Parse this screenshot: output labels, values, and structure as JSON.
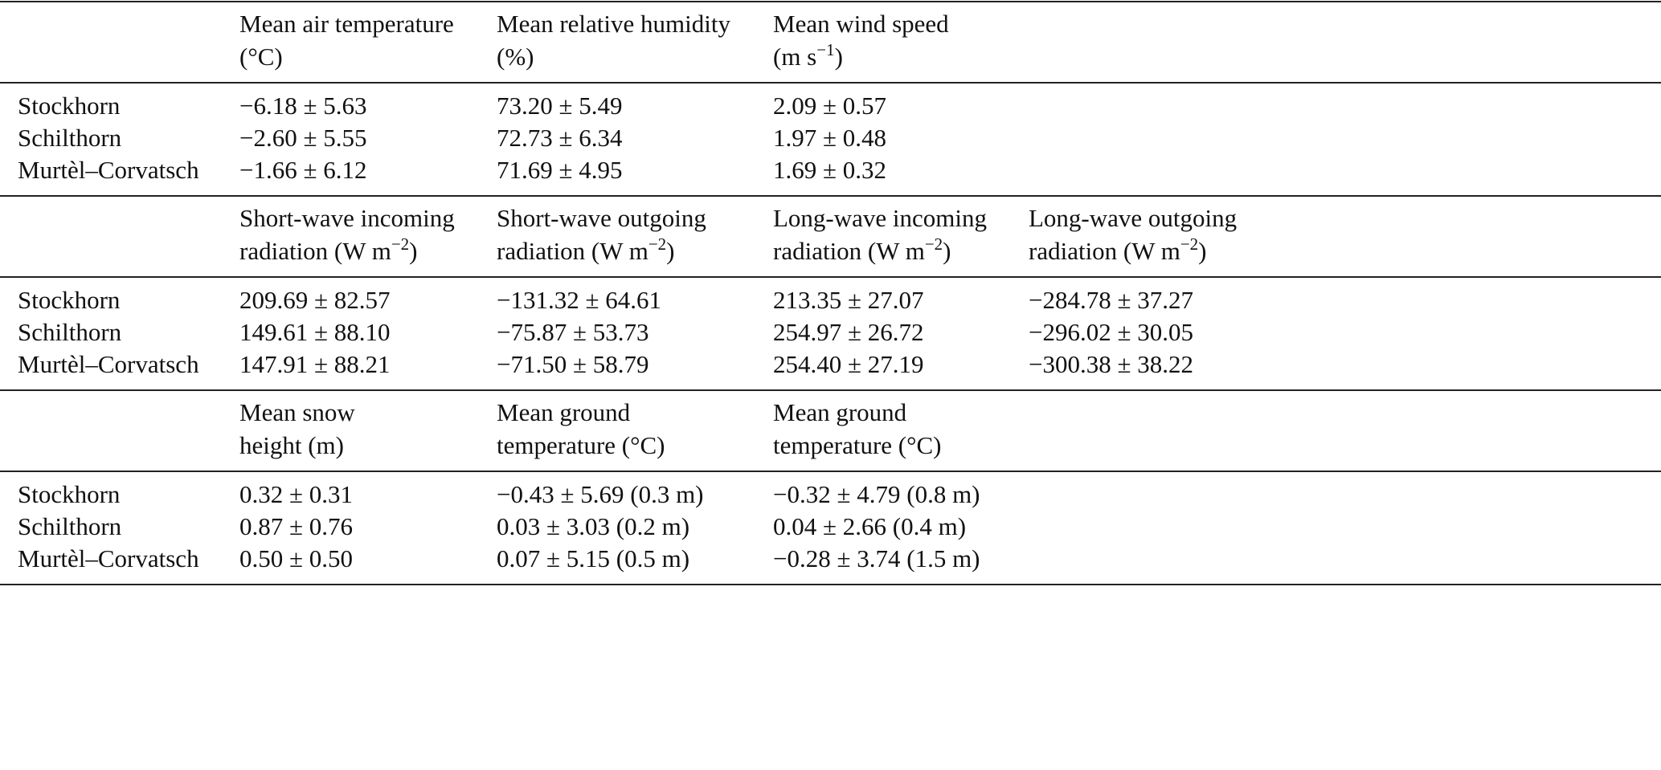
{
  "sections": [
    {
      "headers": [
        {
          "line1": "Mean air temperature",
          "line2": "(°C)",
          "sup": "",
          "post": ""
        },
        {
          "line1": "Mean relative humidity",
          "line2": "(%)",
          "sup": "",
          "post": ""
        },
        {
          "line1": "Mean wind speed",
          "line2": "(m s",
          "sup": "−1",
          "post": ")"
        }
      ],
      "rows": [
        {
          "site": "Stockhorn",
          "values": [
            "−6.18 ± 5.63",
            "73.20 ± 5.49",
            "2.09 ± 0.57"
          ]
        },
        {
          "site": "Schilthorn",
          "values": [
            "−2.60 ± 5.55",
            "72.73 ± 6.34",
            "1.97 ± 0.48"
          ]
        },
        {
          "site": "Murtèl–Corvatsch",
          "values": [
            "−1.66 ± 6.12",
            "71.69 ± 4.95",
            "1.69 ± 0.32"
          ]
        }
      ]
    },
    {
      "headers": [
        {
          "line1": "Short-wave incoming",
          "line2": "radiation (W m",
          "sup": "−2",
          "post": ")"
        },
        {
          "line1": "Short-wave outgoing",
          "line2": "radiation (W m",
          "sup": "−2",
          "post": ")"
        },
        {
          "line1": "Long-wave incoming",
          "line2": "radiation (W m",
          "sup": "−2",
          "post": ")"
        },
        {
          "line1": "Long-wave outgoing",
          "line2": "radiation (W m",
          "sup": "−2",
          "post": ")"
        }
      ],
      "rows": [
        {
          "site": "Stockhorn",
          "values": [
            "209.69 ± 82.57",
            "−131.32 ± 64.61",
            "213.35 ± 27.07",
            "−284.78 ± 37.27"
          ]
        },
        {
          "site": "Schilthorn",
          "values": [
            "149.61 ± 88.10",
            "−75.87 ± 53.73",
            "254.97 ± 26.72",
            "−296.02 ± 30.05"
          ]
        },
        {
          "site": "Murtèl–Corvatsch",
          "values": [
            "147.91 ± 88.21",
            "−71.50 ± 58.79",
            "254.40 ± 27.19",
            "−300.38 ± 38.22"
          ]
        }
      ]
    },
    {
      "headers": [
        {
          "line1": "Mean snow",
          "line2": "height (m)",
          "sup": "",
          "post": ""
        },
        {
          "line1": "Mean ground",
          "line2": "temperature (°C)",
          "sup": "",
          "post": ""
        },
        {
          "line1": "Mean ground",
          "line2": "temperature (°C)",
          "sup": "",
          "post": ""
        }
      ],
      "rows": [
        {
          "site": "Stockhorn",
          "values": [
            "0.32 ± 0.31",
            "−0.43 ± 5.69 (0.3 m)",
            "−0.32 ± 4.79 (0.8 m)"
          ]
        },
        {
          "site": "Schilthorn",
          "values": [
            "0.87 ± 0.76",
            "0.03 ± 3.03 (0.2 m)",
            "0.04 ± 2.66 (0.4 m)"
          ]
        },
        {
          "site": "Murtèl–Corvatsch",
          "values": [
            "0.50 ± 0.50",
            "0.07 ± 5.15 (0.5 m)",
            "−0.28 ± 3.74 (1.5 m)"
          ]
        }
      ]
    }
  ]
}
